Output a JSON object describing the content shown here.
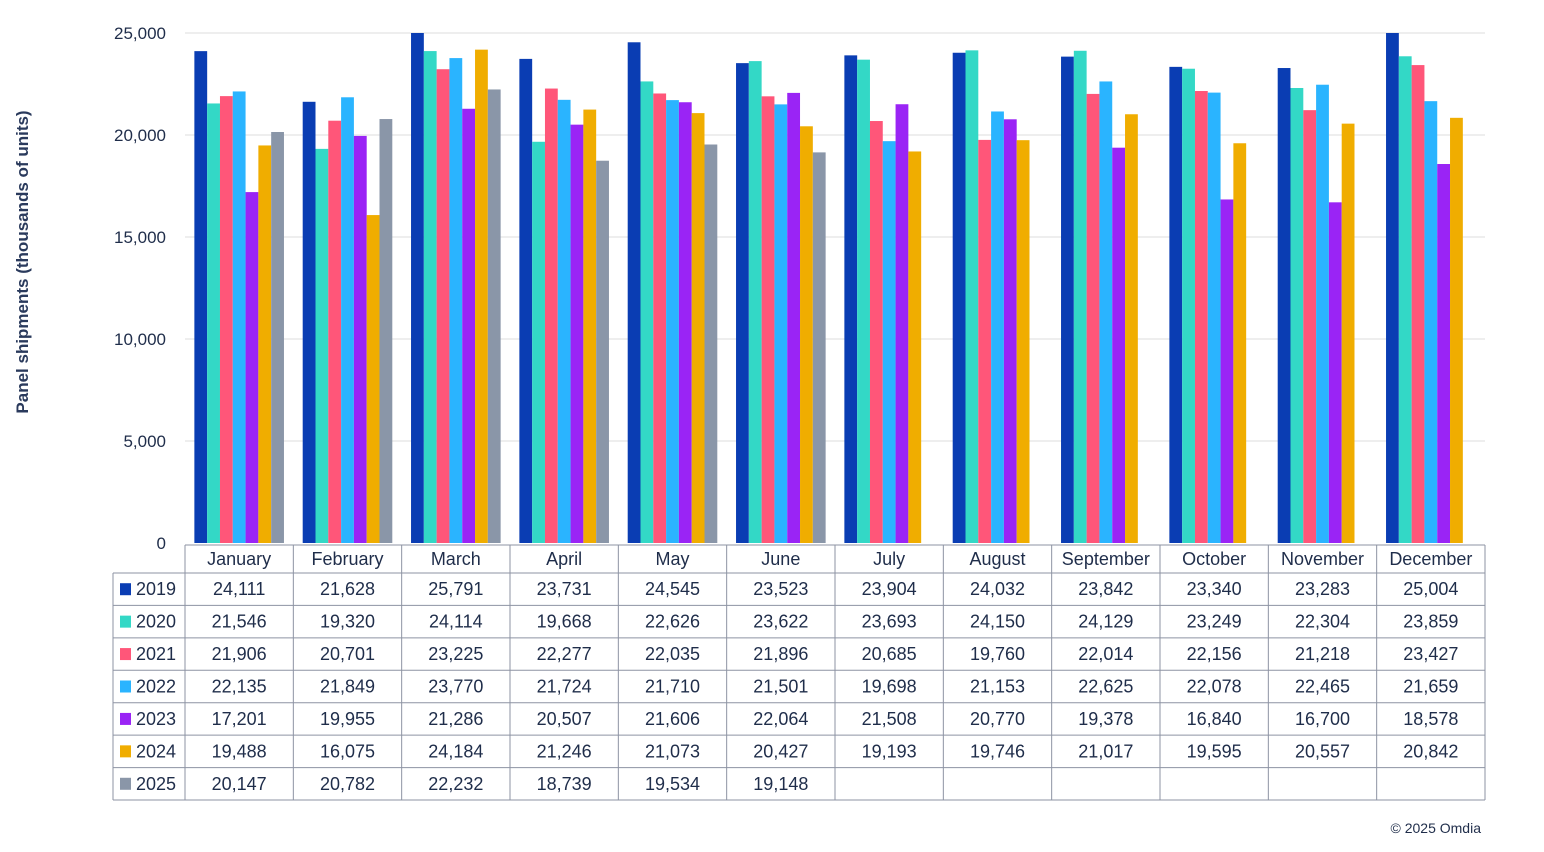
{
  "chart_data": {
    "type": "bar",
    "title": "",
    "xlabel": "",
    "ylabel": "Panel shipments (thousands of units)",
    "ylim": [
      0,
      25000
    ],
    "yticks": [
      0,
      5000,
      10000,
      15000,
      20000,
      25000
    ],
    "ytick_labels": [
      "0",
      "5,000",
      "10,000",
      "15,000",
      "20,000",
      "25,000"
    ],
    "grid": true,
    "legend_placement": "data-table",
    "categories": [
      "January",
      "February",
      "March",
      "April",
      "May",
      "June",
      "July",
      "August",
      "September",
      "October",
      "November",
      "December"
    ],
    "series": [
      {
        "name": "2019",
        "color": "#0a3db3",
        "values": [
          24111,
          21628,
          25791,
          23731,
          24545,
          23523,
          23904,
          24032,
          23842,
          23340,
          23283,
          25004
        ],
        "labels": [
          "24,111",
          "21,628",
          "25,791",
          "23,731",
          "24,545",
          "23,523",
          "23,904",
          "24,032",
          "23,842",
          "23,340",
          "23,283",
          "25,004"
        ]
      },
      {
        "name": "2020",
        "color": "#33d8c6",
        "values": [
          21546,
          19320,
          24114,
          19668,
          22626,
          23622,
          23693,
          24150,
          24129,
          23249,
          22304,
          23859
        ],
        "labels": [
          "21,546",
          "19,320",
          "24,114",
          "19,668",
          "22,626",
          "23,622",
          "23,693",
          "24,150",
          "24,129",
          "23,249",
          "22,304",
          "23,859"
        ]
      },
      {
        "name": "2021",
        "color": "#ff5679",
        "values": [
          21906,
          20701,
          23225,
          22277,
          22035,
          21896,
          20685,
          19760,
          22014,
          22156,
          21218,
          23427
        ],
        "labels": [
          "21,906",
          "20,701",
          "23,225",
          "22,277",
          "22,035",
          "21,896",
          "20,685",
          "19,760",
          "22,014",
          "22,156",
          "21,218",
          "23,427"
        ]
      },
      {
        "name": "2022",
        "color": "#2ab4ff",
        "values": [
          22135,
          21849,
          23770,
          21724,
          21710,
          21501,
          19698,
          21153,
          22625,
          22078,
          22465,
          21659
        ],
        "labels": [
          "22,135",
          "21,849",
          "23,770",
          "21,724",
          "21,710",
          "21,501",
          "19,698",
          "21,153",
          "22,625",
          "22,078",
          "22,465",
          "21,659"
        ]
      },
      {
        "name": "2023",
        "color": "#9a24f5",
        "values": [
          17201,
          19955,
          21286,
          20507,
          21606,
          22064,
          21508,
          20770,
          19378,
          16840,
          16700,
          18578
        ],
        "labels": [
          "17,201",
          "19,955",
          "21,286",
          "20,507",
          "21,606",
          "22,064",
          "21,508",
          "20,770",
          "19,378",
          "16,840",
          "16,700",
          "18,578"
        ]
      },
      {
        "name": "2024",
        "color": "#f0ad00",
        "values": [
          19488,
          16075,
          24184,
          21246,
          21073,
          20427,
          19193,
          19746,
          21017,
          19595,
          20557,
          20842
        ],
        "labels": [
          "19,488",
          "16,075",
          "24,184",
          "21,246",
          "21,073",
          "20,427",
          "19,193",
          "19,746",
          "21,017",
          "19,595",
          "20,557",
          "20,842"
        ]
      },
      {
        "name": "2025",
        "color": "#8a96a8",
        "values": [
          20147,
          20782,
          22232,
          18739,
          19534,
          19148,
          null,
          null,
          null,
          null,
          null,
          null
        ],
        "labels": [
          "20,147",
          "20,782",
          "22,232",
          "18,739",
          "19,534",
          "19,148",
          "",
          "",
          "",
          "",
          "",
          ""
        ]
      }
    ]
  },
  "footer": {
    "copyright": "© 2025 Omdia"
  }
}
